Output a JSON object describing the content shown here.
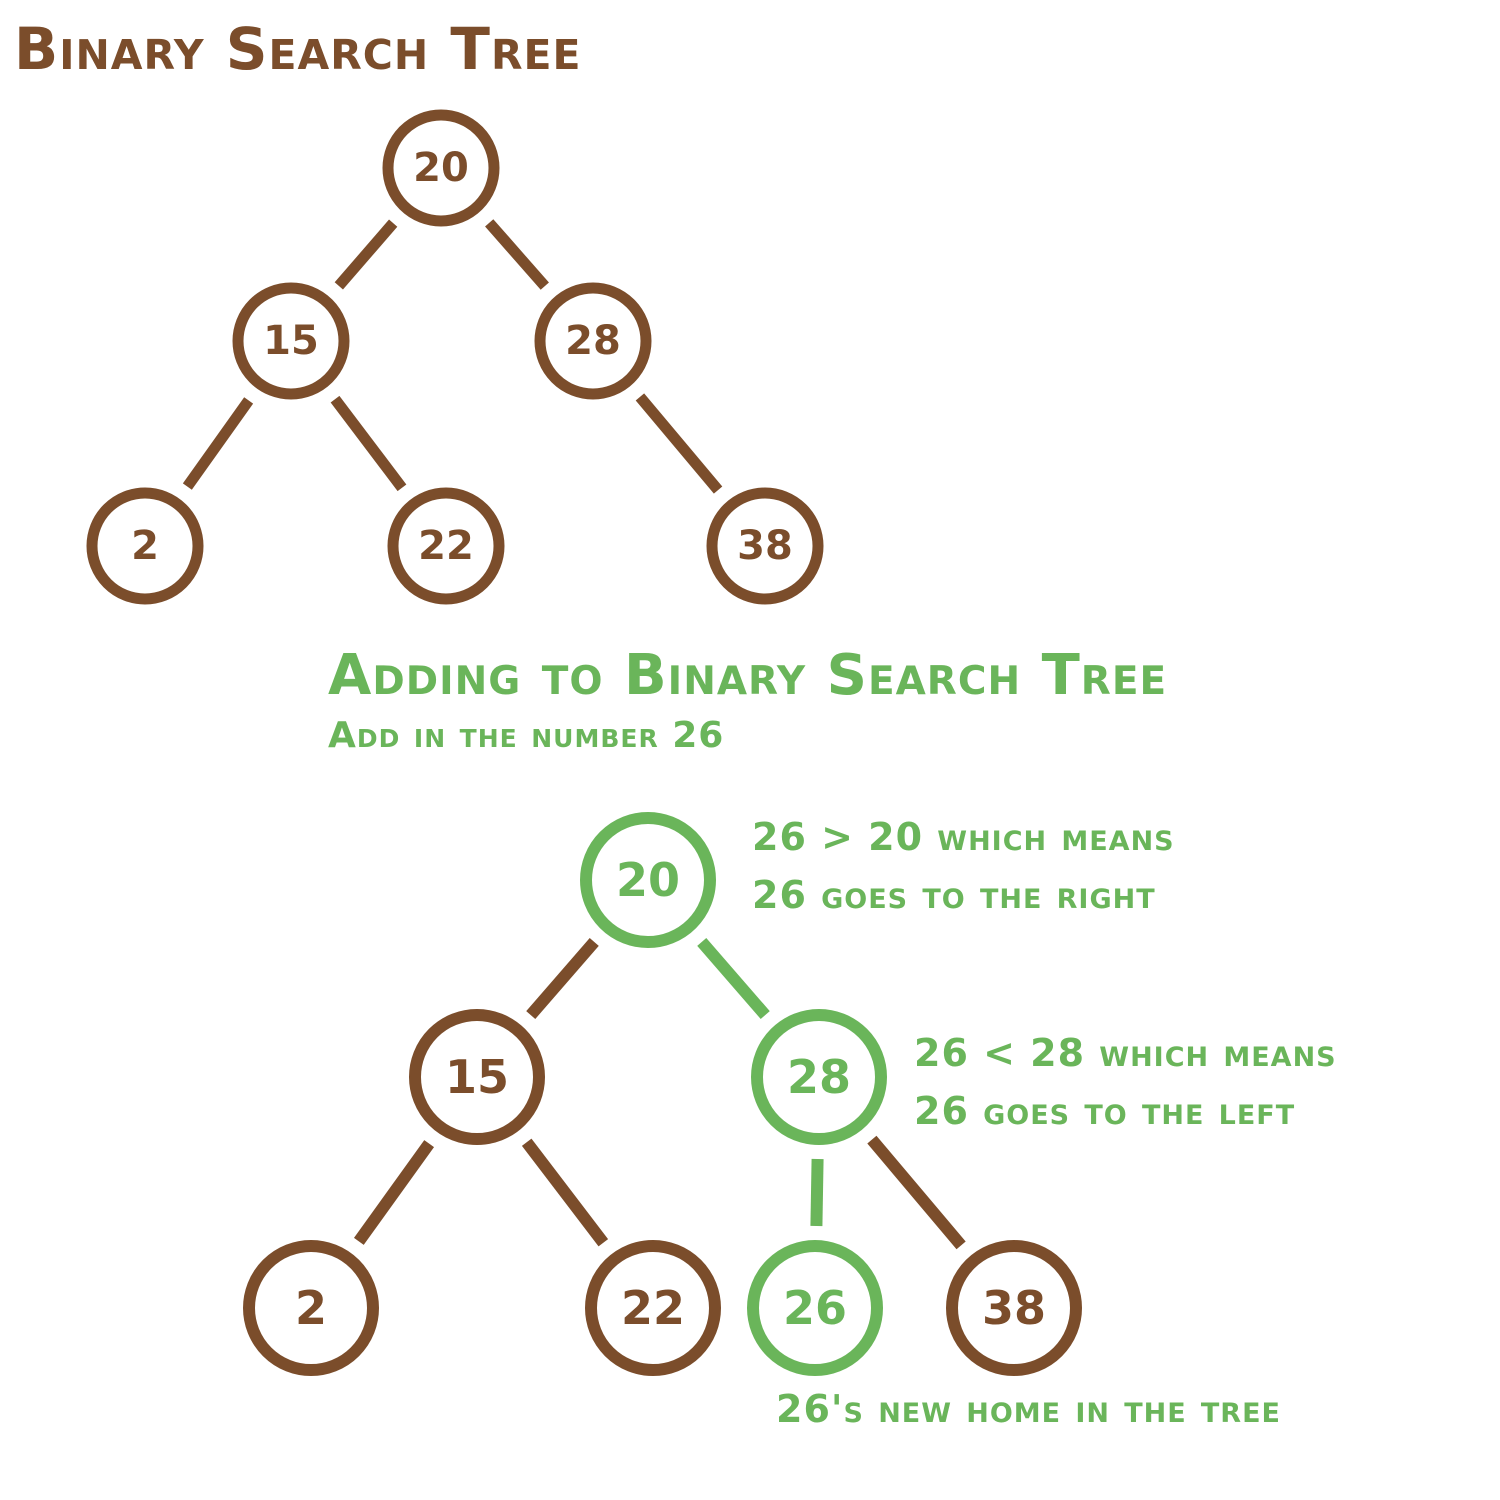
{
  "colors": {
    "brown": "#7b4d2b",
    "green": "#6ab55a",
    "background": "#ffffff"
  },
  "section1": {
    "title": "Binary Search Tree",
    "tree": {
      "nodes": [
        {
          "id": "n20",
          "value": "20"
        },
        {
          "id": "n15",
          "value": "15"
        },
        {
          "id": "n28",
          "value": "28"
        },
        {
          "id": "n2",
          "value": "2"
        },
        {
          "id": "n22",
          "value": "22"
        },
        {
          "id": "n38",
          "value": "38"
        }
      ],
      "edges": [
        [
          "n20",
          "n15"
        ],
        [
          "n20",
          "n28"
        ],
        [
          "n15",
          "n2"
        ],
        [
          "n15",
          "n22"
        ],
        [
          "n28",
          "n38"
        ]
      ]
    }
  },
  "section2": {
    "title": "Adding to Binary Search Tree",
    "subtitle": "Add in the number 26",
    "notes": {
      "root_line1": "26 > 20 which means",
      "root_line2": "26 goes to the right",
      "node28_line1": "26 < 28 which means",
      "node28_line2": "26 goes to the left",
      "new_home": "26's new home in the tree"
    },
    "tree": {
      "nodes": [
        {
          "id": "m20",
          "value": "20",
          "highlight": true
        },
        {
          "id": "m15",
          "value": "15",
          "highlight": false
        },
        {
          "id": "m28",
          "value": "28",
          "highlight": true
        },
        {
          "id": "m2",
          "value": "2",
          "highlight": false
        },
        {
          "id": "m22",
          "value": "22",
          "highlight": false
        },
        {
          "id": "m26",
          "value": "26",
          "highlight": true
        },
        {
          "id": "m38",
          "value": "38",
          "highlight": false
        }
      ],
      "edges": [
        {
          "from": "m20",
          "to": "m15",
          "highlight": false
        },
        {
          "from": "m20",
          "to": "m28",
          "highlight": true
        },
        {
          "from": "m15",
          "to": "m2",
          "highlight": false
        },
        {
          "from": "m15",
          "to": "m22",
          "highlight": false
        },
        {
          "from": "m28",
          "to": "m26",
          "highlight": true
        },
        {
          "from": "m28",
          "to": "m38",
          "highlight": false
        }
      ]
    }
  }
}
